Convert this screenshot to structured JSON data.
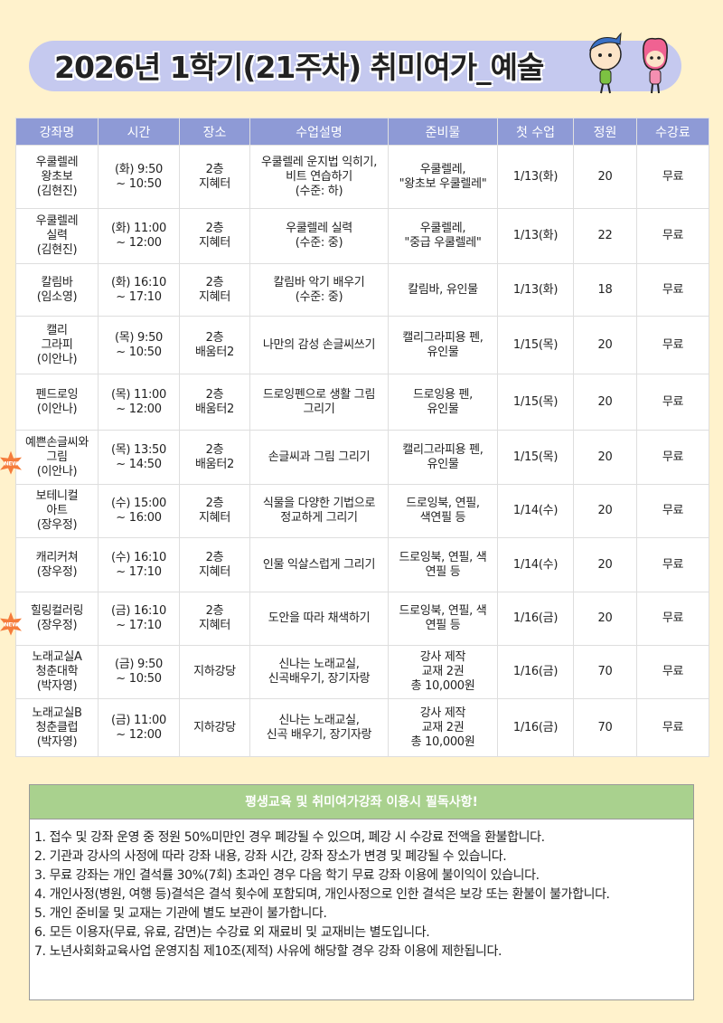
{
  "title": "2026년 1학기(21주차) 취미여가_예술",
  "colors": {
    "header": "#8e9ad6",
    "banner": "#c5c9ef",
    "background": "#fff2cc",
    "notice_header": "#a9d18e"
  },
  "table": {
    "headers": [
      "강좌명",
      "시간",
      "장소",
      "수업설명",
      "준비물",
      "첫 수업",
      "정원",
      "수강료"
    ],
    "rows": [
      {
        "new": false,
        "cells": [
          "우쿨렐레\n왕초보\n(김현진)",
          "(화) 9:50\n~ 10:50",
          "2층\n지혜터",
          "우쿨렐레 운지법 익히기,\n비트 연습하기\n(수준: 하)",
          "우쿨렐레,\n\"왕초보 우쿨렐레\"",
          "1/13(화)",
          "20",
          "무료"
        ]
      },
      {
        "new": false,
        "cells": [
          "우쿨렐레\n실력\n(김현진)",
          "(화) 11:00\n~ 12:00",
          "2층\n지혜터",
          "우쿨렐레 실력\n(수준: 중)",
          "우쿨렐레,\n\"중급 우쿨렐레\"",
          "1/13(화)",
          "22",
          "무료"
        ]
      },
      {
        "new": false,
        "cells": [
          "칼림바\n(임소영)",
          "(화) 16:10\n~ 17:10",
          "2층\n지혜터",
          "칼림바 악기 배우기\n(수준: 중)",
          "칼림바, 유인물",
          "1/13(화)",
          "18",
          "무료"
        ]
      },
      {
        "new": false,
        "cells": [
          "캘리\n그라피\n(이안나)",
          "(목) 9:50\n~ 10:50",
          "2층\n배움터2",
          "나만의 감성 손글씨쓰기",
          "캘리그라피용 펜,\n유인물",
          "1/15(목)",
          "20",
          "무료"
        ]
      },
      {
        "new": false,
        "cells": [
          "펜드로잉\n(이안나)",
          "(목) 11:00\n~ 12:00",
          "2층\n배움터2",
          "드로잉펜으로 생활 그림\n그리기",
          "드로잉용 펜,\n유인물",
          "1/15(목)",
          "20",
          "무료"
        ]
      },
      {
        "new": true,
        "cells": [
          "예쁜손글씨와\n그림\n(이안나)",
          "(목) 13:50\n~ 14:50",
          "2층\n배움터2",
          "손글씨과 그림 그리기",
          "캘리그라피용 펜,\n유인물",
          "1/15(목)",
          "20",
          "무료"
        ]
      },
      {
        "new": false,
        "cells": [
          "보테니컬\n아트\n(장우정)",
          "(수) 15:00\n~ 16:00",
          "2층\n지혜터",
          "식물을 다양한 기법으로\n정교하게 그리기",
          "드로잉북, 연필,\n색연필 등",
          "1/14(수)",
          "20",
          "무료"
        ]
      },
      {
        "new": false,
        "cells": [
          "캐리커쳐\n(장우정)",
          "(수) 16:10\n~ 17:10",
          "2층\n지혜터",
          "인물 익살스럽게 그리기",
          "드로잉북, 연필, 색\n연필 등",
          "1/14(수)",
          "20",
          "무료"
        ]
      },
      {
        "new": true,
        "cells": [
          "힐링컬러링\n(장우정)",
          "(금) 16:10\n~ 17:10",
          "2층\n지혜터",
          "도안을 따라 채색하기",
          "드로잉북, 연필, 색\n연필 등",
          "1/16(금)",
          "20",
          "무료"
        ]
      },
      {
        "new": false,
        "cells": [
          "노래교실A\n청춘대학\n(박자영)",
          "(금) 9:50\n~ 10:50",
          "지하강당",
          "신나는 노래교실,\n신곡배우기, 장기자랑",
          "강사 제작\n교재 2권\n총 10,000원",
          "1/16(금)",
          "70",
          "무료"
        ]
      },
      {
        "new": false,
        "cells": [
          "노래교실B\n청춘클럽\n(박자영)",
          "(금) 11:00\n~ 12:00",
          "지하강당",
          "신나는 노래교실,\n신곡 배우기, 장기자랑",
          "강사 제작\n교재 2권\n총 10,000원",
          "1/16(금)",
          "70",
          "무료"
        ]
      }
    ],
    "new_badge": "NEW"
  },
  "notice": {
    "title": "평생교육 및 취미여가강좌 이용시 필독사항!",
    "items": [
      "1. 접수 및 강좌 운영 중 정원 50%미만인 경우 폐강될 수 있으며, 폐강 시 수강료 전액을 환불합니다.",
      "2. 기관과 강사의 사정에 따라 강좌 내용, 강좌 시간, 강좌 장소가 변경 및 폐강될 수 있습니다.",
      "3. 무료 강좌는 개인 결석률 30%(7회) 초과인 경우 다음 학기 무료 강좌 이용에 불이익이 있습니다.",
      "4. 개인사정(병원, 여행 등)결석은 결석 횟수에 포함되며, 개인사정으로 인한 결석은 보강 또는 환불이 불가합니다.",
      "5. 개인 준비물 및 교재는 기관에 별도 보관이 불가합니다.",
      "6. 모든 이용자(무료, 유료, 감면)는 수강료 외 재료비 및 교재비는 별도입니다.",
      "7. 노년사회화교육사업 운영지침 제10조(제적) 사유에 해당할 경우 강좌 이용에 제한됩니다."
    ]
  }
}
